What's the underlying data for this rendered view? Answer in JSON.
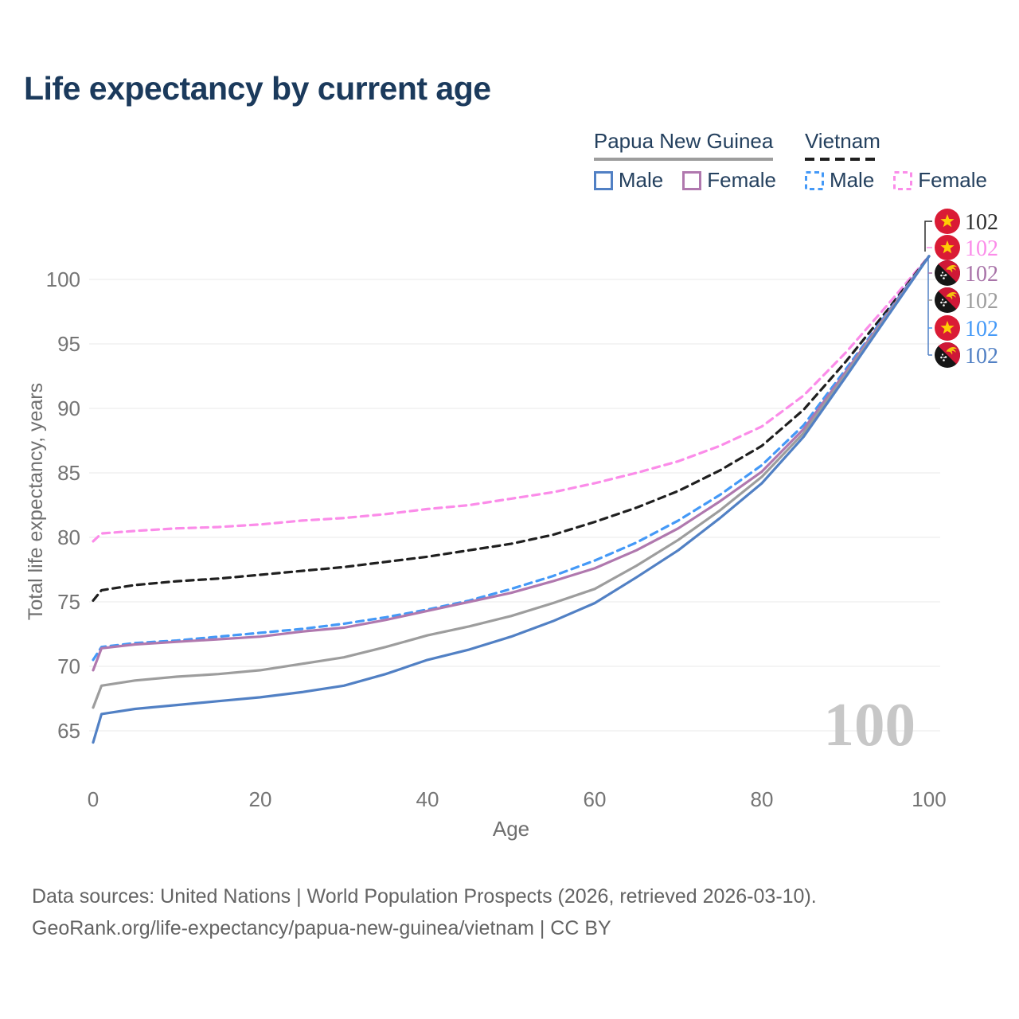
{
  "title": "Life expectancy by current age",
  "legend": {
    "groups": [
      {
        "label": "Papua New Guinea",
        "line_color": "#9d9d9d",
        "line_style": "solid",
        "items": [
          {
            "label": "Male",
            "color": "#5180c4",
            "style": "solid"
          },
          {
            "label": "Female",
            "color": "#b078ae",
            "style": "solid"
          }
        ]
      },
      {
        "label": "Vietnam",
        "line_color": "#1f1f1f",
        "line_style": "dashed",
        "items": [
          {
            "label": "Male",
            "color": "#4499f7",
            "style": "dashed"
          },
          {
            "label": "Female",
            "color": "#fb8ce9",
            "style": "dashed"
          }
        ]
      }
    ]
  },
  "chart_data": {
    "type": "line",
    "title": "Life expectancy by current age",
    "xlabel": "Age",
    "ylabel": "Total life expectancy, years",
    "x_ticks": [
      0,
      20,
      40,
      60,
      80,
      100
    ],
    "y_ticks": [
      65,
      70,
      75,
      80,
      85,
      90,
      95,
      100
    ],
    "xlim": [
      0,
      100
    ],
    "ylim": [
      63.5,
      103
    ],
    "grid": "horizontal",
    "legend_position": "top-right",
    "age_counter": "100",
    "x": [
      0,
      1,
      5,
      10,
      15,
      20,
      25,
      30,
      35,
      40,
      45,
      50,
      55,
      60,
      65,
      70,
      75,
      80,
      85,
      90,
      95,
      100
    ],
    "series": [
      {
        "name": "Vietnam Female",
        "country": "Vietnam",
        "sex": "Female",
        "color": "#fb8ce9",
        "dashed": true,
        "values": [
          79.7,
          80.3,
          80.5,
          80.7,
          80.8,
          81.0,
          81.3,
          81.5,
          81.8,
          82.2,
          82.5,
          83.0,
          83.5,
          84.2,
          85.0,
          85.9,
          87.1,
          88.6,
          91.0,
          94.3,
          98.0,
          101.8
        ]
      },
      {
        "name": "Vietnam",
        "country": "Vietnam",
        "sex": "Both",
        "color": "#1f1f1f",
        "dashed": true,
        "values": [
          75.1,
          75.9,
          76.3,
          76.6,
          76.8,
          77.1,
          77.4,
          77.7,
          78.1,
          78.5,
          79.0,
          79.5,
          80.2,
          81.2,
          82.3,
          83.6,
          85.2,
          87.1,
          89.9,
          93.6,
          97.6,
          101.8
        ]
      },
      {
        "name": "Vietnam Male",
        "country": "Vietnam",
        "sex": "Male",
        "color": "#4499f7",
        "dashed": true,
        "values": [
          70.5,
          71.5,
          71.8,
          72.0,
          72.3,
          72.6,
          72.9,
          73.3,
          73.8,
          74.4,
          75.1,
          76.0,
          77.0,
          78.2,
          79.6,
          81.3,
          83.3,
          85.6,
          88.7,
          93.0,
          97.4,
          101.8
        ]
      },
      {
        "name": "Papua New Guinea Female",
        "country": "Papua New Guinea",
        "sex": "Female",
        "color": "#b078ae",
        "dashed": false,
        "values": [
          69.7,
          71.4,
          71.7,
          71.9,
          72.1,
          72.3,
          72.7,
          73.0,
          73.6,
          74.3,
          75.0,
          75.7,
          76.6,
          77.6,
          79.0,
          80.7,
          82.8,
          85.1,
          88.4,
          92.8,
          97.3,
          101.8
        ]
      },
      {
        "name": "Papua New Guinea",
        "country": "Papua New Guinea",
        "sex": "Both",
        "color": "#9d9d9d",
        "dashed": false,
        "values": [
          66.8,
          68.5,
          68.9,
          69.2,
          69.4,
          69.7,
          70.2,
          70.7,
          71.5,
          72.4,
          73.1,
          73.9,
          74.9,
          76.0,
          77.8,
          79.8,
          82.1,
          84.7,
          88.1,
          92.6,
          97.2,
          101.8
        ]
      },
      {
        "name": "Papua New Guinea Male",
        "country": "Papua New Guinea",
        "sex": "Male",
        "color": "#5180c4",
        "dashed": false,
        "values": [
          64.1,
          66.3,
          66.7,
          67.0,
          67.3,
          67.6,
          68.0,
          68.5,
          69.4,
          70.5,
          71.3,
          72.3,
          73.5,
          74.9,
          76.9,
          79.0,
          81.5,
          84.2,
          87.8,
          92.4,
          97.1,
          101.8
        ]
      }
    ],
    "end_labels": [
      {
        "flag": "vietnam",
        "series": "Vietnam",
        "value": "102",
        "color": "#2d2d2d"
      },
      {
        "flag": "vietnam",
        "series": "Vietnam Female",
        "value": "102",
        "color": "#fb8ce9"
      },
      {
        "flag": "papua-new-guinea",
        "series": "Papua New Guinea Female",
        "value": "102",
        "color": "#a873a8"
      },
      {
        "flag": "papua-new-guinea",
        "series": "Papua New Guinea",
        "value": "102",
        "color": "#9d9d9d"
      },
      {
        "flag": "vietnam",
        "series": "Vietnam Male",
        "value": "102",
        "color": "#4499f7"
      },
      {
        "flag": "papua-new-guinea",
        "series": "Papua New Guinea Male",
        "value": "102",
        "color": "#5180c4"
      }
    ]
  },
  "footer": {
    "line1": "Data sources: United Nations | World Population Prospects (2026, retrieved 2026-03-10).",
    "line2": "GeoRank.org/life-expectancy/papua-new-guinea/vietnam | CC BY"
  },
  "colors": {
    "title": "#1b3a5c",
    "grid": "#e8e8e8",
    "tick_label": "#757575",
    "axis_title": "#6f6f6f",
    "watermark": "#c7c7c7",
    "vietnam_flag_red": "#da1b35",
    "vietnam_flag_star": "#ffcd05",
    "png_flag_black": "#161616",
    "png_flag_red": "#cf1837",
    "png_flag_gold": "#f4c50c"
  }
}
